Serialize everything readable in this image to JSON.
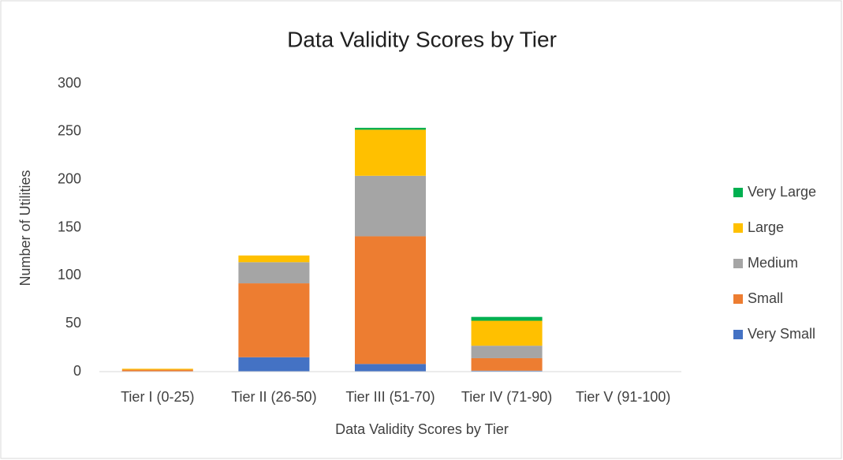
{
  "chart_data": {
    "type": "stacked_bar",
    "title": "Data Validity Scores by Tier",
    "x_label": "Data Validity Scores by Tier",
    "y_label": "Number of Utilities",
    "categories": [
      "Tier I (0-25)",
      "Tier II (26-50)",
      "Tier III (51-70)",
      "Tier IV (71-90)",
      "Tier V (91-100)"
    ],
    "series": [
      {
        "name": "Very Small",
        "color": "#4472c4",
        "values": [
          0,
          15,
          8,
          1,
          0
        ]
      },
      {
        "name": "Small",
        "color": "#ed7d31",
        "values": [
          2,
          77,
          133,
          13,
          0
        ]
      },
      {
        "name": "Medium",
        "color": "#a5a5a5",
        "values": [
          0,
          22,
          63,
          13,
          0
        ]
      },
      {
        "name": "Large",
        "color": "#ffc000",
        "values": [
          1,
          7,
          48,
          26,
          0
        ]
      },
      {
        "name": "Very Large",
        "color": "#00b050",
        "values": [
          0,
          0,
          2,
          4,
          0
        ]
      }
    ],
    "ylim": [
      0,
      300
    ],
    "yticks": [
      0,
      50,
      100,
      150,
      200,
      250,
      300
    ],
    "grid": false,
    "legend": "right"
  }
}
